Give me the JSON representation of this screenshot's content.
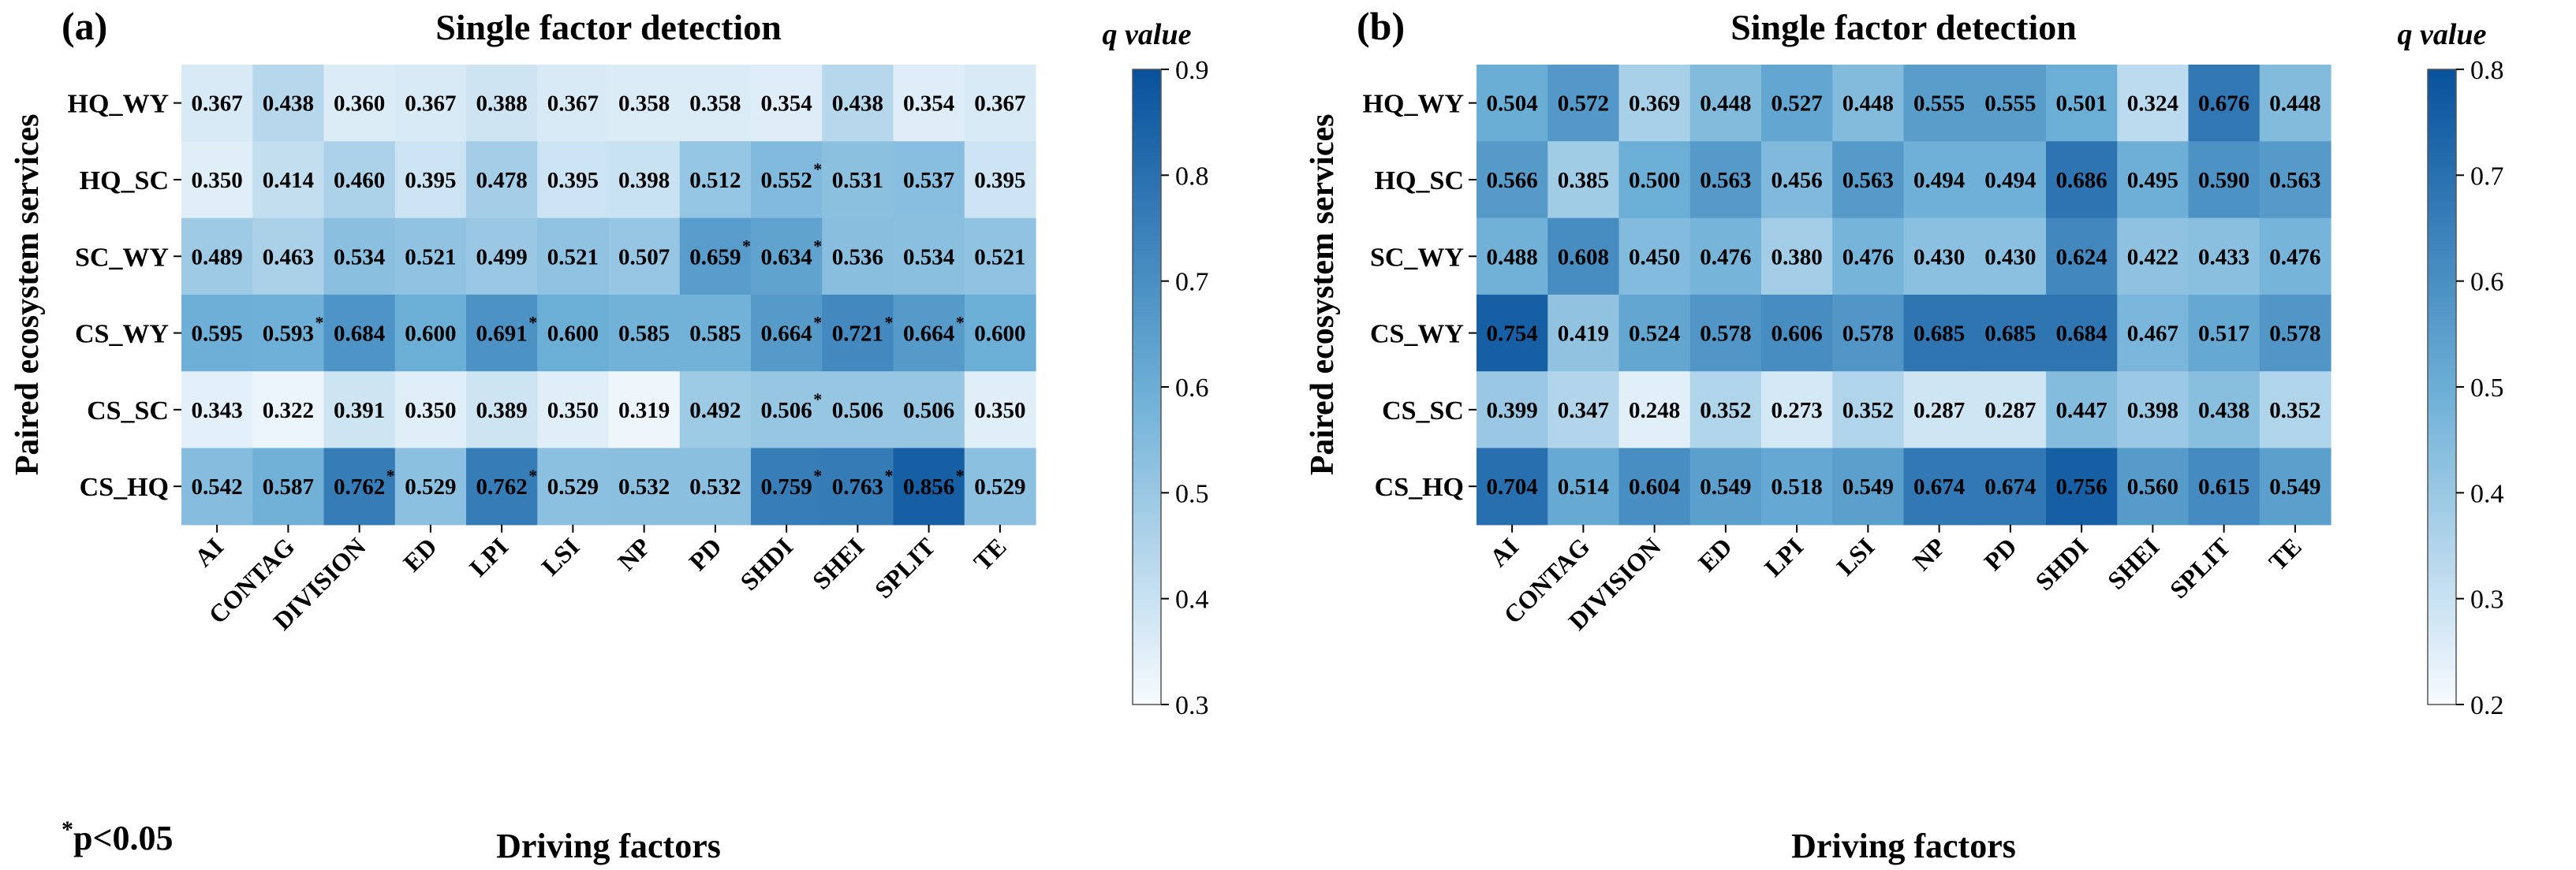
{
  "figure": {
    "footnote": {
      "star": "*",
      "text": "p<0.05"
    }
  },
  "chart_data": [
    {
      "type": "heatmap",
      "panel_label": "(a)",
      "title": "Single factor detection",
      "xlabel": "Driving factors",
      "ylabel": "Paired ecosystem services",
      "x_categories": [
        "AI",
        "CONTAG",
        "DIVISION",
        "ED",
        "LPI",
        "LSI",
        "NP",
        "PD",
        "SHDI",
        "SHEI",
        "SPLIT",
        "TE"
      ],
      "y_categories": [
        "HQ_WY",
        "HQ_SC",
        "SC_WY",
        "CS_WY",
        "CS_SC",
        "CS_HQ"
      ],
      "values": [
        [
          0.367,
          0.438,
          0.36,
          0.367,
          0.388,
          0.367,
          0.358,
          0.358,
          0.354,
          0.438,
          0.354,
          0.367
        ],
        [
          0.35,
          0.414,
          0.46,
          0.395,
          0.478,
          0.395,
          0.398,
          0.512,
          0.552,
          0.531,
          0.537,
          0.395
        ],
        [
          0.489,
          0.463,
          0.534,
          0.521,
          0.499,
          0.521,
          0.507,
          0.659,
          0.634,
          0.536,
          0.534,
          0.521
        ],
        [
          0.595,
          0.593,
          0.684,
          0.6,
          0.691,
          0.6,
          0.585,
          0.585,
          0.664,
          0.721,
          0.664,
          0.6
        ],
        [
          0.343,
          0.322,
          0.391,
          0.35,
          0.389,
          0.35,
          0.319,
          0.492,
          0.506,
          0.506,
          0.506,
          0.35
        ],
        [
          0.542,
          0.587,
          0.762,
          0.529,
          0.762,
          0.529,
          0.532,
          0.532,
          0.759,
          0.763,
          0.856,
          0.529
        ]
      ],
      "significant": [
        [
          0,
          0,
          0,
          0,
          0,
          0,
          0,
          0,
          0,
          0,
          0,
          0
        ],
        [
          0,
          0,
          0,
          0,
          0,
          0,
          0,
          0,
          1,
          0,
          0,
          0
        ],
        [
          0,
          0,
          0,
          0,
          0,
          0,
          0,
          1,
          1,
          0,
          0,
          0
        ],
        [
          0,
          1,
          0,
          0,
          1,
          0,
          0,
          0,
          1,
          1,
          1,
          0
        ],
        [
          0,
          0,
          0,
          0,
          0,
          0,
          0,
          0,
          1,
          0,
          0,
          0
        ],
        [
          0,
          0,
          1,
          0,
          1,
          0,
          0,
          0,
          1,
          1,
          1,
          0
        ]
      ],
      "colorbar": {
        "label": "q value",
        "range": [
          0.3,
          0.9
        ],
        "ticks": [
          "0.3",
          "0.4",
          "0.5",
          "0.6",
          "0.7",
          "0.8",
          "0.9"
        ]
      },
      "colors": {
        "low": "#f7fbff",
        "mid": "#6baed6",
        "high": "#08519c"
      }
    },
    {
      "type": "heatmap",
      "panel_label": "(b)",
      "title": "Single factor detection",
      "xlabel": "Driving factors",
      "ylabel": "Paired ecosystem services",
      "x_categories": [
        "AI",
        "CONTAG",
        "DIVISION",
        "ED",
        "LPI",
        "LSI",
        "NP",
        "PD",
        "SHDI",
        "SHEI",
        "SPLIT",
        "TE"
      ],
      "y_categories": [
        "HQ_WY",
        "HQ_SC",
        "SC_WY",
        "CS_WY",
        "CS_SC",
        "CS_HQ"
      ],
      "values": [
        [
          0.504,
          0.572,
          0.369,
          0.448,
          0.527,
          0.448,
          0.555,
          0.555,
          0.501,
          0.324,
          0.676,
          0.448
        ],
        [
          0.566,
          0.385,
          0.5,
          0.563,
          0.456,
          0.563,
          0.494,
          0.494,
          0.686,
          0.495,
          0.59,
          0.563
        ],
        [
          0.488,
          0.608,
          0.45,
          0.476,
          0.38,
          0.476,
          0.43,
          0.43,
          0.624,
          0.422,
          0.433,
          0.476
        ],
        [
          0.754,
          0.419,
          0.524,
          0.578,
          0.606,
          0.578,
          0.685,
          0.685,
          0.684,
          0.467,
          0.517,
          0.578
        ],
        [
          0.399,
          0.347,
          0.248,
          0.352,
          0.273,
          0.352,
          0.287,
          0.287,
          0.447,
          0.398,
          0.438,
          0.352
        ],
        [
          0.704,
          0.514,
          0.604,
          0.549,
          0.518,
          0.549,
          0.674,
          0.674,
          0.756,
          0.56,
          0.615,
          0.549
        ]
      ],
      "significant": [
        [
          0,
          0,
          0,
          0,
          0,
          0,
          0,
          0,
          0,
          0,
          0,
          0
        ],
        [
          0,
          0,
          0,
          0,
          0,
          0,
          0,
          0,
          0,
          0,
          0,
          0
        ],
        [
          0,
          0,
          0,
          0,
          0,
          0,
          0,
          0,
          0,
          0,
          0,
          0
        ],
        [
          0,
          0,
          0,
          0,
          0,
          0,
          0,
          0,
          0,
          0,
          0,
          0
        ],
        [
          0,
          0,
          0,
          0,
          0,
          0,
          0,
          0,
          0,
          0,
          0,
          0
        ],
        [
          0,
          0,
          0,
          0,
          0,
          0,
          0,
          0,
          0,
          0,
          0,
          0
        ]
      ],
      "colorbar": {
        "label": "q value",
        "range": [
          0.2,
          0.8
        ],
        "ticks": [
          "0.2",
          "0.3",
          "0.4",
          "0.5",
          "0.6",
          "0.7",
          "0.8"
        ]
      },
      "colors": {
        "low": "#f7fbff",
        "mid": "#6baed6",
        "high": "#08519c"
      }
    }
  ]
}
